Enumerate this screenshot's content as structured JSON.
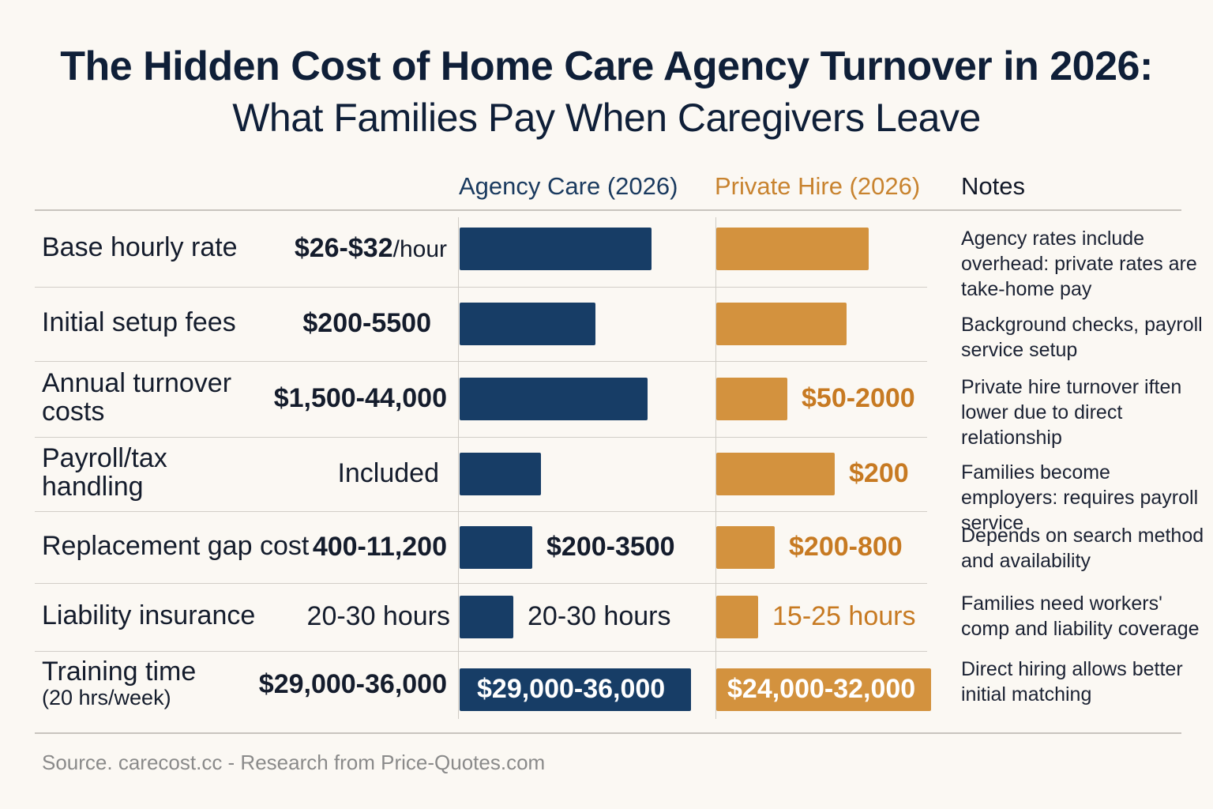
{
  "title_line1": "The Hidden Cost of Home Care Agency Turnover in 2026:",
  "title_line2": "What Families Pay When Caregivers Leave",
  "columns": {
    "agency": "Agency Care (2026)",
    "private": "Private Hire (2026)",
    "notes": "Notes"
  },
  "colors": {
    "agency": "#173d66",
    "private": "#d3923e",
    "private_text": "#c77a22"
  },
  "source": "Source. carecost.cc - Research from Price-Quotes.com",
  "chart_data": {
    "type": "bar",
    "orientation": "horizontal",
    "grid": true,
    "rows": [
      {
        "label": "Base hourly rate",
        "value_main": "$26-$32",
        "value_unit": "/hour",
        "agency_text": "",
        "private_text": "",
        "agency_bar": 243,
        "private_bar": 193,
        "note": "Agency rates include overhead: private rates are take-home pay"
      },
      {
        "label": "Initial setup fees",
        "value_main": "$200-5500",
        "value_unit": "",
        "agency_text": "",
        "private_text": "",
        "agency_bar": 172,
        "private_bar": 165,
        "note": "Background checks, payroll service setup"
      },
      {
        "label": "Annual turnover costs",
        "value_main": "$1,500-44,000",
        "value_unit": "",
        "agency_text": "",
        "private_text": "$50-2000",
        "agency_bar": 238,
        "private_bar": 90,
        "note": "Private hire turnover iften lower due to direct relationship"
      },
      {
        "label": "Payroll/tax handling",
        "value_main": "Included",
        "value_unit": "",
        "agency_text": "",
        "private_text": "$200",
        "agency_bar": 103,
        "private_bar": 150,
        "note": "Families become employers: requires payroll service"
      },
      {
        "label": "Replacement gap cost",
        "value_main": "400-11,200",
        "value_unit": "",
        "agency_text": "$200-3500",
        "private_text": "$200-800",
        "agency_bar": 92,
        "private_bar": 74,
        "note": "Depends on search method and availability"
      },
      {
        "label": "Liability insurance",
        "value_main": "20-30 hours",
        "value_unit": "",
        "agency_text": "20-30 hours",
        "private_text": "15-25 hours",
        "agency_bar": 68,
        "private_bar": 53,
        "note": "Families need workers' comp and liability coverage"
      },
      {
        "label": "Training time",
        "label_sub": "(20 hrs/week)",
        "value_main": "$29,000-36,000",
        "value_unit": "",
        "agency_text": "$29,000-36,000",
        "private_text": "$24,000-32,000",
        "agency_bar": 293,
        "private_bar": 272,
        "note": "Direct hiring allows better initial matching"
      }
    ]
  }
}
